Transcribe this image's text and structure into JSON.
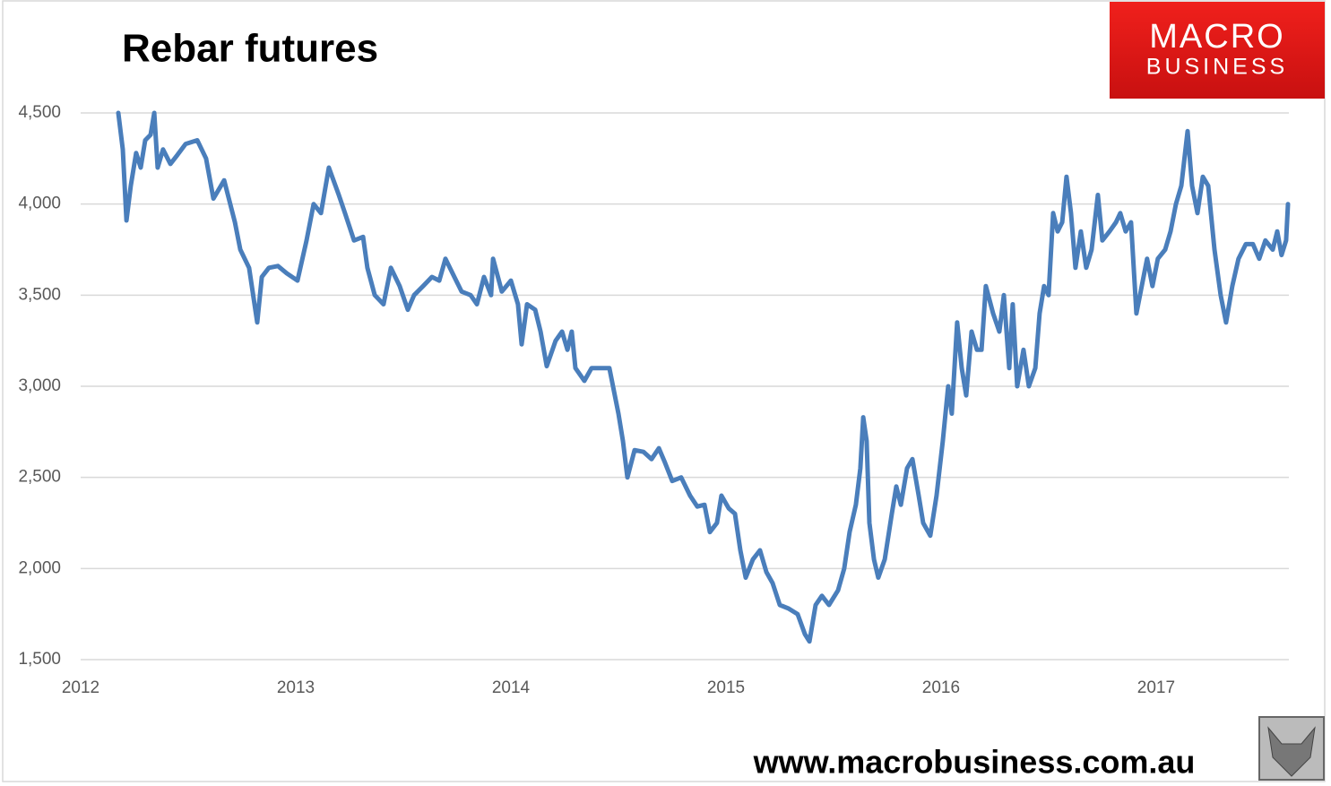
{
  "chart_data": {
    "type": "line",
    "title": "Rebar futures",
    "logo": [
      "MACRO",
      "BUSINESS"
    ],
    "footer": "www.macrobusiness.com.au",
    "color": "#4a7ebb",
    "grid": true,
    "xlim": [
      2012,
      2017.617
    ],
    "xticks": [
      2012,
      2013,
      2014,
      2015,
      2016,
      2017
    ],
    "ylim": [
      1500,
      4500
    ],
    "yticks": [
      {
        "value": 1500,
        "label": "1,500"
      },
      {
        "value": 2000,
        "label": "2,000"
      },
      {
        "value": 2500,
        "label": "2,500"
      },
      {
        "value": 3000,
        "label": "3,000"
      },
      {
        "value": 3500,
        "label": "3,500"
      },
      {
        "value": 4000,
        "label": "4,000"
      },
      {
        "value": 4500,
        "label": "4,500"
      }
    ],
    "x": [
      2012.175,
      2012.196,
      2012.213,
      2012.233,
      2012.258,
      2012.279,
      2012.3,
      2012.325,
      2012.342,
      2012.358,
      2012.383,
      2012.417,
      2012.45,
      2012.488,
      2012.542,
      2012.583,
      2012.617,
      2012.667,
      2012.717,
      2012.742,
      2012.783,
      2012.821,
      2012.842,
      2012.875,
      2012.917,
      2012.958,
      2013.008,
      2013.05,
      2013.083,
      2013.117,
      2013.154,
      2013.2,
      2013.229,
      2013.271,
      2013.313,
      2013.333,
      2013.367,
      2013.408,
      2013.442,
      2013.483,
      2013.521,
      2013.55,
      2013.592,
      2013.633,
      2013.667,
      2013.696,
      2013.729,
      2013.771,
      2013.813,
      2013.842,
      2013.875,
      2013.908,
      2013.917,
      2013.958,
      2014.0,
      2014.033,
      2014.05,
      2014.075,
      2014.113,
      2014.138,
      2014.167,
      2014.208,
      2014.238,
      2014.263,
      2014.283,
      2014.3,
      2014.342,
      2014.375,
      2014.417,
      2014.458,
      2014.5,
      2014.521,
      2014.542,
      2014.575,
      2014.617,
      2014.654,
      2014.688,
      2014.717,
      2014.75,
      2014.792,
      2014.833,
      2014.867,
      2014.9,
      2014.925,
      2014.958,
      2014.979,
      2015.013,
      2015.042,
      2015.067,
      2015.092,
      2015.125,
      2015.158,
      2015.188,
      2015.217,
      2015.25,
      2015.292,
      2015.333,
      2015.367,
      2015.388,
      2015.417,
      2015.446,
      2015.479,
      2015.521,
      2015.55,
      2015.575,
      2015.604,
      2015.625,
      2015.638,
      2015.654,
      2015.667,
      2015.688,
      2015.708,
      2015.738,
      2015.771,
      2015.792,
      2015.813,
      2015.842,
      2015.867,
      2015.896,
      2015.917,
      2015.95,
      2015.979,
      2016.008,
      2016.033,
      2016.05,
      2016.075,
      2016.096,
      2016.117,
      2016.142,
      2016.167,
      2016.188,
      2016.208,
      2016.242,
      2016.271,
      2016.292,
      2016.317,
      2016.333,
      2016.354,
      2016.383,
      2016.408,
      2016.438,
      2016.458,
      2016.479,
      2016.5,
      2016.521,
      2016.542,
      2016.563,
      2016.583,
      2016.604,
      2016.625,
      2016.65,
      2016.675,
      2016.7,
      2016.729,
      2016.75,
      2016.783,
      2016.813,
      2016.833,
      2016.858,
      2016.883,
      2016.908,
      2016.925,
      2016.958,
      2016.983,
      2017.008,
      2017.042,
      2017.067,
      2017.092,
      2017.117,
      2017.146,
      2017.167,
      2017.192,
      2017.217,
      2017.242,
      2017.271,
      2017.3,
      2017.325,
      2017.354,
      2017.383,
      2017.417,
      2017.45,
      2017.479,
      2017.508,
      2017.542,
      2017.563,
      2017.583,
      2017.604,
      2017.613
    ],
    "values": [
      4500,
      4300,
      3910,
      4100,
      4280,
      4200,
      4350,
      4380,
      4500,
      4200,
      4300,
      4220,
      4270,
      4330,
      4350,
      4250,
      4030,
      4130,
      3900,
      3750,
      3650,
      3350,
      3600,
      3650,
      3660,
      3620,
      3580,
      3800,
      4000,
      3950,
      4200,
      4050,
      3950,
      3800,
      3820,
      3650,
      3500,
      3450,
      3650,
      3550,
      3420,
      3500,
      3550,
      3600,
      3580,
      3700,
      3620,
      3520,
      3500,
      3450,
      3600,
      3500,
      3700,
      3520,
      3580,
      3450,
      3230,
      3450,
      3420,
      3300,
      3110,
      3250,
      3300,
      3200,
      3300,
      3100,
      3030,
      3100,
      3100,
      3100,
      2850,
      2700,
      2500,
      2650,
      2640,
      2600,
      2660,
      2580,
      2480,
      2500,
      2400,
      2340,
      2350,
      2200,
      2250,
      2400,
      2330,
      2300,
      2100,
      1950,
      2050,
      2100,
      1980,
      1920,
      1800,
      1780,
      1750,
      1640,
      1600,
      1800,
      1850,
      1800,
      1880,
      2000,
      2200,
      2350,
      2550,
      2830,
      2700,
      2250,
      2050,
      1950,
      2050,
      2300,
      2450,
      2350,
      2550,
      2600,
      2400,
      2250,
      2180,
      2400,
      2700,
      3000,
      2850,
      3350,
      3100,
      2950,
      3300,
      3200,
      3200,
      3550,
      3400,
      3300,
      3500,
      3100,
      3450,
      3000,
      3200,
      3000,
      3100,
      3400,
      3550,
      3500,
      3950,
      3850,
      3900,
      4150,
      3950,
      3650,
      3850,
      3650,
      3750,
      4050,
      3800,
      3850,
      3900,
      3950,
      3850,
      3900,
      3400,
      3500,
      3700,
      3550,
      3700,
      3750,
      3850,
      4000,
      4100,
      4400,
      4100,
      3950,
      4150,
      4100,
      3750,
      3500,
      3350,
      3550,
      3700,
      3780,
      3780,
      3700,
      3800,
      3750,
      3850,
      3720,
      3800,
      4000
    ]
  }
}
